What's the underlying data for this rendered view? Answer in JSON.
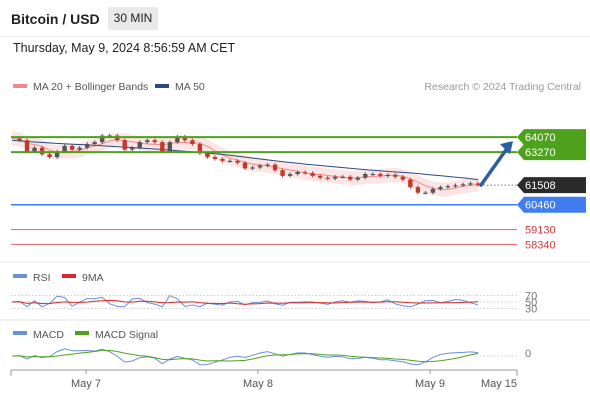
{
  "header": {
    "pair": "Bitcoin / USD",
    "timeframe": "30 MIN",
    "datetime": "Thursday, May 9, 2024 8:56:59 AM CET"
  },
  "legend": {
    "ma20": "MA 20 + Bollinger Bands",
    "ma50": "MA 50",
    "rsi": "RSI",
    "rsi_ma": "9MA",
    "macd": "MACD",
    "macd_signal": "MACD Signal"
  },
  "copyright": "Research © 2024 Trading Central",
  "colors": {
    "resistance": "#4ea21b",
    "support": "#3f7ef0",
    "current": "#2b2b2b",
    "pivot_minor": "#e36060",
    "arrow": "#2d5fa0",
    "candle_up": "#555555",
    "candle_down": "#c0392b",
    "ma20": "#f08a8a",
    "ma50": "#2c4a82",
    "bands": "#fbdcdc",
    "rsi": "#6b8fd8",
    "rsi_ma": "#d62828",
    "macd": "#6b8fd8",
    "macd_signal": "#4ea21b"
  },
  "chart_data": {
    "type": "candlestick",
    "x_ticks": [
      "May 7",
      "May 8",
      "May 9",
      "May 15"
    ],
    "y_range": [
      57400,
      66050
    ],
    "levels": [
      {
        "value": 64070,
        "label": "64070",
        "kind": "resistance"
      },
      {
        "value": 63270,
        "label": "63270",
        "kind": "resistance"
      },
      {
        "value": 61508,
        "label": "61508",
        "kind": "current"
      },
      {
        "value": 60460,
        "label": "60460",
        "kind": "support"
      },
      {
        "value": 59130,
        "label": "59130",
        "kind": "pivot-minor"
      },
      {
        "value": 58340,
        "label": "58340",
        "kind": "pivot-minor"
      }
    ],
    "forecast_arrow": {
      "from": 61508,
      "to": 64070,
      "direction": "up"
    },
    "price_path": [
      64000,
      63900,
      63300,
      63500,
      63150,
      63000,
      63300,
      63600,
      63400,
      63500,
      63700,
      63800,
      64150,
      64150,
      63900,
      63400,
      63500,
      63800,
      63900,
      63800,
      63300,
      63800,
      64100,
      63900,
      63700,
      63200,
      63000,
      62900,
      62800,
      62800,
      62700,
      62400,
      62450,
      62550,
      62600,
      62300,
      62000,
      62100,
      62200,
      62150,
      62000,
      61900,
      61850,
      61950,
      61950,
      61800,
      61900,
      62100,
      62100,
      62000,
      62050,
      61950,
      61800,
      61400,
      61100,
      61100,
      61300,
      61400,
      61450,
      61500,
      61550,
      61600,
      61508
    ],
    "ma50_path": [
      63900,
      63850,
      63800,
      63760,
      63720,
      63690,
      63660,
      63620,
      63580,
      63540,
      63500,
      63460,
      63420,
      63370,
      63320,
      63270,
      63210,
      63150,
      63080,
      63000,
      62920,
      62840,
      62760,
      62690,
      62620,
      62560,
      62500,
      62440,
      62380,
      62320,
      62270,
      62220,
      62180,
      62130,
      62060,
      62000,
      61940,
      61880,
      61800
    ],
    "rsi": {
      "levels": [
        70,
        50,
        30
      ],
      "labels": [
        "70",
        "50",
        "30"
      ],
      "range": [
        0,
        100
      ]
    },
    "macd": {
      "levels": [
        0
      ],
      "labels": [
        "0"
      ]
    }
  }
}
